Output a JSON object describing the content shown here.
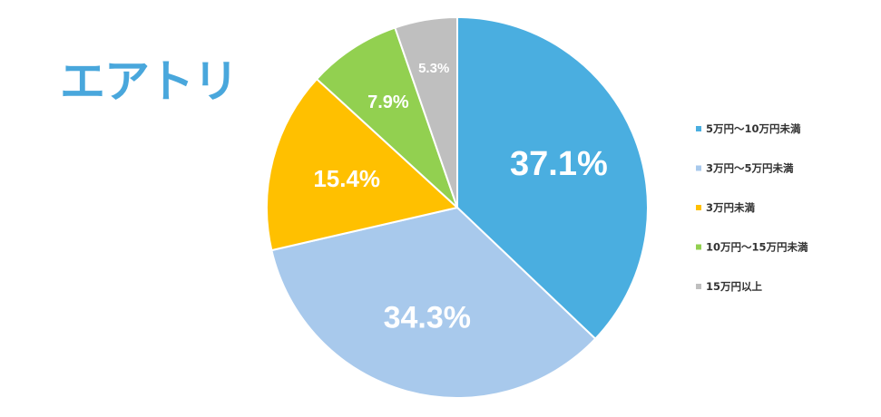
{
  "logo": {
    "text": "エアトリ",
    "color": "#49a7dc"
  },
  "chart_data": {
    "type": "pie",
    "categories": [
      "5万円～10万円未満",
      "3万円～5万円未満",
      "3万円未満",
      "10万円～15万円未満",
      "15万円以上"
    ],
    "values": [
      37.1,
      34.3,
      15.4,
      7.9,
      5.3
    ],
    "labels": [
      "37.1%",
      "34.3%",
      "15.4%",
      "7.9%",
      "5.3%"
    ],
    "colors": [
      "#4aaee0",
      "#a8c9ec",
      "#ffc000",
      "#92d050",
      "#bfbfbf"
    ],
    "legend_position": "right",
    "start": "top, clockwise"
  }
}
